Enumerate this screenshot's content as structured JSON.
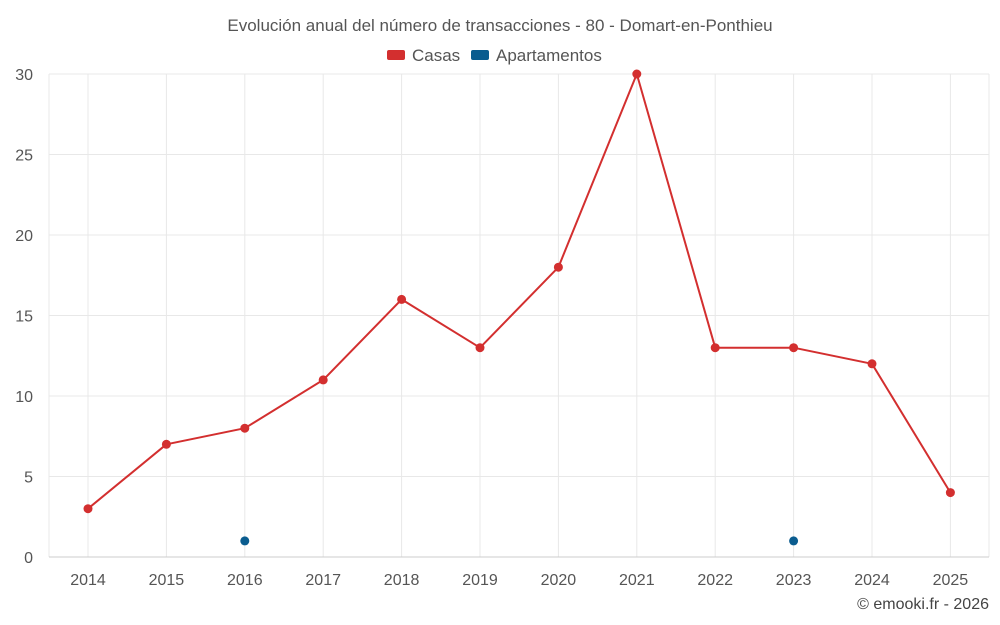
{
  "chart_data": {
    "type": "line",
    "title": "Evolución anual del número de transacciones - 80 - Domart-en-Ponthieu",
    "xlabel": "",
    "ylabel": "",
    "categories": [
      "2014",
      "2015",
      "2016",
      "2017",
      "2018",
      "2019",
      "2020",
      "2021",
      "2022",
      "2023",
      "2024",
      "2025"
    ],
    "series": [
      {
        "name": "Casas",
        "color": "#d32f2f",
        "values": [
          3,
          7,
          8,
          11,
          16,
          13,
          18,
          30,
          13,
          13,
          12,
          4
        ]
      },
      {
        "name": "Apartamentos",
        "color": "#0a5c8f",
        "values": [
          null,
          null,
          1,
          null,
          null,
          null,
          null,
          null,
          null,
          1,
          null,
          null
        ]
      }
    ],
    "ylim": [
      0,
      30
    ],
    "yticks": [
      0,
      5,
      10,
      15,
      20,
      25,
      30
    ],
    "grid": true,
    "legend": "top-center"
  },
  "credit": "© emooki.fr - 2026"
}
